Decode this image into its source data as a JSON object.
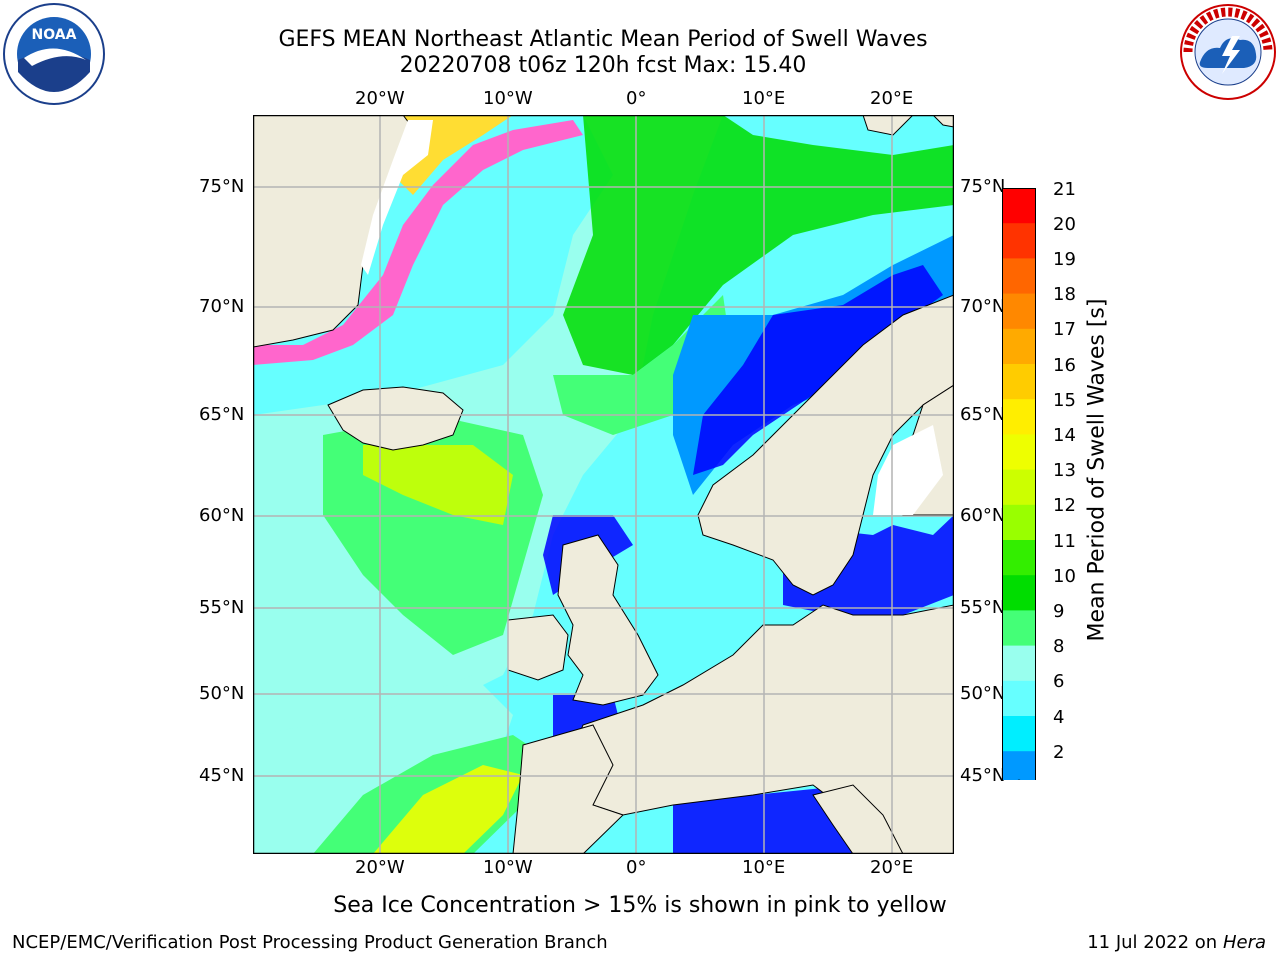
{
  "header": {
    "title_line1": "GEFS MEAN Northeast Atlantic Mean Period of Swell Waves",
    "title_line2": "20220708 t06z 120h fcst   Max: 15.40"
  },
  "map": {
    "lon_ticks_top": [
      "20°W",
      "10°W",
      "0°",
      "10°E",
      "20°E"
    ],
    "lon_ticks_bottom": [
      "20°W",
      "10°W",
      "0°",
      "10°E",
      "20°E"
    ],
    "lat_ticks_left": [
      "75°N",
      "70°N",
      "65°N",
      "60°N",
      "55°N",
      "50°N",
      "45°N"
    ],
    "lat_ticks_right": [
      "75°N",
      "70°N",
      "65°N",
      "60°N",
      "55°N",
      "50°N",
      "45°N"
    ],
    "land_color": "#efecdc",
    "grid_color": "#b4b4b4"
  },
  "colorbar": {
    "title": "Mean Period of Swell Waves [s]",
    "tick_labels": [
      "21",
      "20",
      "19",
      "18",
      "17",
      "16",
      "15",
      "14",
      "13",
      "12",
      "11",
      "10",
      "9",
      "8",
      "6",
      "4",
      "2"
    ],
    "colors_top_to_bottom": [
      "#ff0000",
      "#ff3300",
      "#ff6600",
      "#ff8800",
      "#ffaa00",
      "#ffcc00",
      "#ffee00",
      "#eeff00",
      "#ccff00",
      "#99ff00",
      "#33ee00",
      "#00dd00",
      "#44ff77",
      "#99ffee",
      "#66ffff",
      "#00eeff",
      "#0099ff",
      "#0000ff"
    ]
  },
  "footnote": "Sea Ice Concentration > 15% is shown in pink to yellow",
  "footer": {
    "left": "NCEP/EMC/Verification Post Processing Product Generation Branch",
    "right_date": "11 Jul 2022 on ",
    "right_host": "Hera"
  },
  "logos": {
    "left_text": "NOAA",
    "right_text": "NATIONAL WEATHER SERVICE"
  }
}
